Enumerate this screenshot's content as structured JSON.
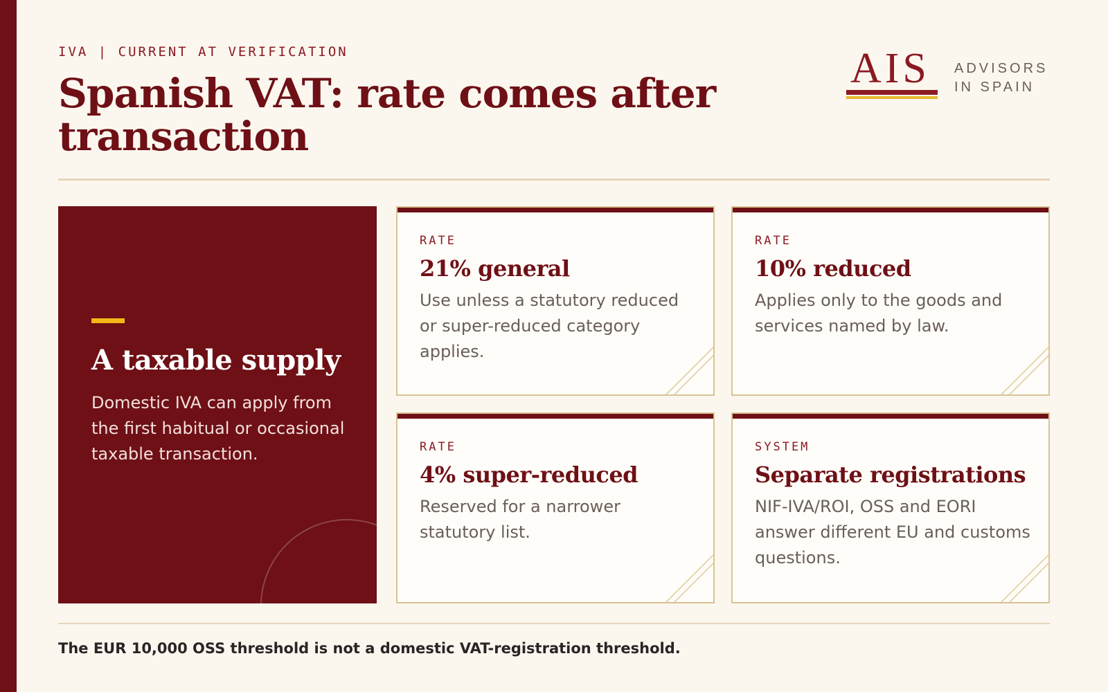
{
  "header": {
    "eyebrow": "IVA | CURRENT AT VERIFICATION",
    "title": "Spanish VAT: rate comes after transaction"
  },
  "brand": {
    "mark": "AIS",
    "name_line1": "ADVISORS",
    "name_line2": "IN SPAIN",
    "colors": {
      "primary": "#8a1a22",
      "accent": "#e7b62c"
    }
  },
  "hero": {
    "title": "A taxable supply",
    "body": "Domestic IVA can apply from the first habitual or occasional taxable transaction."
  },
  "cards": [
    {
      "kicker": "RATE",
      "title": "21% general",
      "body": "Use unless a statutory reduced or super-reduced category applies."
    },
    {
      "kicker": "RATE",
      "title": "10% reduced",
      "body": "Applies only to the goods and services named by law."
    },
    {
      "kicker": "RATE",
      "title": "4% super-reduced",
      "body": "Reserved for a narrower statutory list."
    },
    {
      "kicker": "SYSTEM",
      "title": "Separate registrations",
      "body": "NIF-IVA/ROI, OSS and EORI answer different EU and customs questions."
    }
  ],
  "footer": {
    "note": "The EUR 10,000 OSS threshold is not a domestic VAT-registration threshold."
  },
  "theme": {
    "background": "#fbf7ef",
    "maroon": "#6e1016",
    "gold": "#f2b818",
    "card_border": "#d9c394"
  }
}
